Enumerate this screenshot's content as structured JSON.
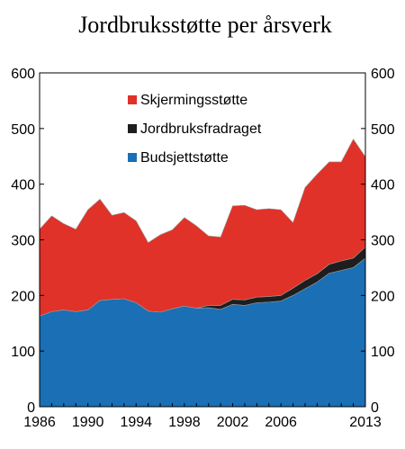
{
  "chart_data": {
    "type": "area",
    "stacked": true,
    "title": "Jordbruksstøtte per årsverk",
    "xlabel": "",
    "ylabel": "",
    "ylim": [
      0,
      600
    ],
    "xlim": [
      1986,
      2013
    ],
    "y_ticks": [
      0,
      100,
      200,
      300,
      400,
      500,
      600
    ],
    "x_tick_labels": [
      "1986",
      "1990",
      "1994",
      "1998",
      "2002",
      "2006",
      "2013"
    ],
    "x_tick_values": [
      1986,
      1990,
      1994,
      1998,
      2002,
      2006,
      2013
    ],
    "legend_position": "top-center",
    "grid": false,
    "x": [
      1986,
      1987,
      1988,
      1989,
      1990,
      1991,
      1992,
      1993,
      1994,
      1995,
      1996,
      1997,
      1998,
      1999,
      2000,
      2001,
      2002,
      2003,
      2004,
      2005,
      2006,
      2007,
      2008,
      2009,
      2010,
      2011,
      2012,
      2013
    ],
    "series": [
      {
        "name": "Budsjettstøtte",
        "color": "#1a6fb5",
        "values": [
          163,
          171,
          174,
          171,
          174,
          191,
          193,
          194,
          187,
          172,
          170,
          176,
          181,
          177,
          178,
          175,
          184,
          182,
          187,
          188,
          190,
          200,
          212,
          224,
          240,
          245,
          250,
          267
        ]
      },
      {
        "name": "Jordbruksfradraget",
        "color": "#1e1e1e",
        "values": [
          0,
          0,
          0,
          0,
          0,
          0,
          0,
          0,
          0,
          0,
          0,
          0,
          0,
          0,
          4,
          7,
          9,
          10,
          10,
          10,
          10,
          13,
          15,
          15,
          16,
          17,
          17,
          20
        ]
      },
      {
        "name": "Skjermingsstøtte",
        "color": "#e03228",
        "values": [
          156,
          172,
          155,
          148,
          180,
          182,
          151,
          155,
          147,
          123,
          139,
          142,
          159,
          148,
          125,
          123,
          168,
          170,
          157,
          158,
          154,
          118,
          167,
          179,
          184,
          178,
          214,
          162
        ]
      }
    ],
    "legend_order": [
      "Skjermingsstøtte",
      "Jordbruksfradraget",
      "Budsjettstøtte"
    ]
  }
}
